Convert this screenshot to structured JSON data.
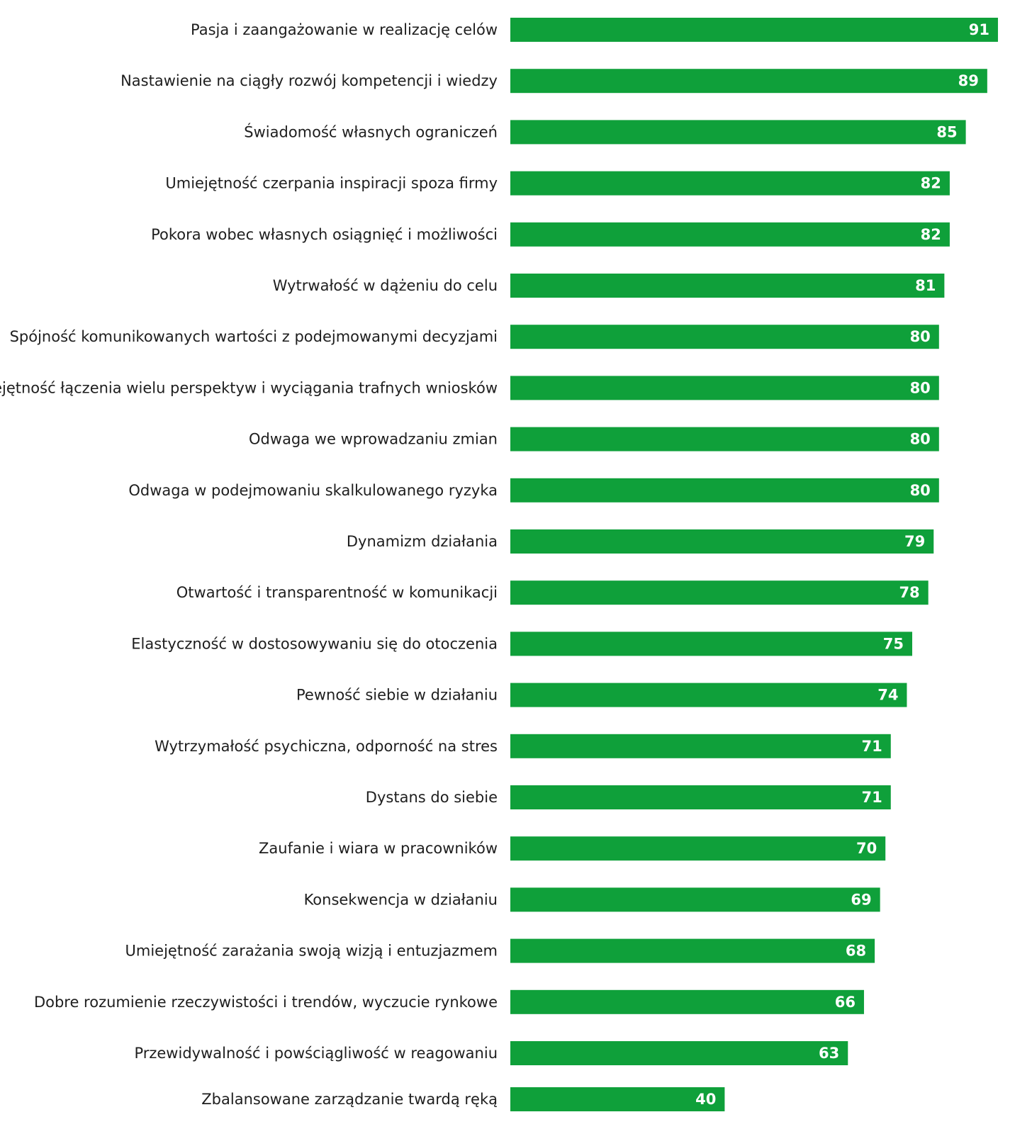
{
  "chart_data": {
    "type": "bar",
    "orientation": "horizontal",
    "title": "",
    "xlabel": "",
    "ylabel": "",
    "xlim": [
      0,
      100
    ],
    "grid": false,
    "legend": "none",
    "bar_color": "#0fa03a",
    "label_color": "#1e1e1e",
    "value_label_color": "#ffffff",
    "categories": [
      "Pasja i zaangażowanie w realizację celów",
      "Nastawienie na ciągły rozwój kompetencji i wiedzy",
      "Świadomość własnych ograniczeń",
      "Umiejętność czerpania inspiracji spoza firmy",
      "Pokora wobec własnych osiągnięć i możliwości",
      "Wytrwałość w dążeniu do celu",
      "Spójność komunikowanych wartości z podejmowanymi decyzjami",
      "Umiejętność łączenia wielu perspektyw i wyciągania trafnych wniosków",
      "Odwaga we wprowadzaniu zmian",
      "Odwaga w podejmowaniu skalkulowanego ryzyka",
      "Dynamizm działania",
      "Otwartość i transparentność w komunikacji",
      "Elastyczność w dostosowywaniu się do otoczenia",
      "Pewność siebie w działaniu",
      "Wytrzymałość psychiczna, odporność na stres",
      "Dystans do siebie",
      "Zaufanie i wiara w pracowników",
      "Konsekwencja w działaniu",
      "Umiejętność zarażania swoją wizją i entuzjazmem",
      "Dobre rozumienie rzeczywistości i trendów, wyczucie rynkowe",
      "Przewidywalność i powściągliwość w reagowaniu",
      "Zbalansowane zarządzanie twardą ręką"
    ],
    "values": [
      91,
      89,
      85,
      82,
      82,
      81,
      80,
      80,
      80,
      80,
      79,
      78,
      75,
      74,
      71,
      71,
      70,
      69,
      68,
      66,
      63,
      40
    ],
    "value_labels": [
      "91",
      "89",
      "85",
      "82",
      "82",
      "81",
      "80",
      "80",
      "80",
      "80",
      "79",
      "78",
      "75",
      "74",
      "71",
      "71",
      "70",
      "69",
      "68",
      "66",
      "63",
      "40"
    ]
  }
}
